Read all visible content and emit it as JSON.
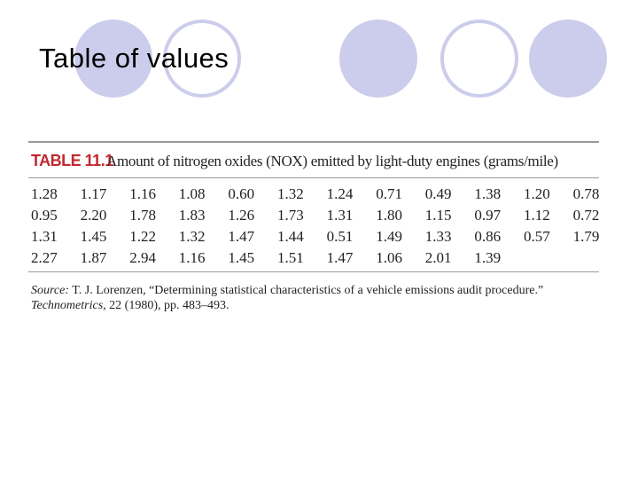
{
  "header": {
    "title": "Table of values"
  },
  "table": {
    "label": "TABLE 11.1",
    "caption": "Amount of nitrogen oxides (NOX) emitted by light-duty engines (grams/mile)",
    "rows": [
      [
        "1.28",
        "1.17",
        "1.16",
        "1.08",
        "0.60",
        "1.32",
        "1.24",
        "0.71",
        "0.49",
        "1.38",
        "1.20",
        "0.78"
      ],
      [
        "0.95",
        "2.20",
        "1.78",
        "1.83",
        "1.26",
        "1.73",
        "1.31",
        "1.80",
        "1.15",
        "0.97",
        "1.12",
        "0.72"
      ],
      [
        "1.31",
        "1.45",
        "1.22",
        "1.32",
        "1.47",
        "1.44",
        "0.51",
        "1.49",
        "1.33",
        "0.86",
        "0.57",
        "1.79"
      ],
      [
        "2.27",
        "1.87",
        "2.94",
        "1.16",
        "1.45",
        "1.51",
        "1.47",
        "1.06",
        "2.01",
        "1.39"
      ]
    ]
  },
  "source": {
    "label": "Source:",
    "text": " T. J. Lorenzen, “Determining statistical characteristics of a vehicle emissions audit procedure.”",
    "journal": "Technometrics",
    "details": ", 22 (1980), pp. 483–493."
  }
}
